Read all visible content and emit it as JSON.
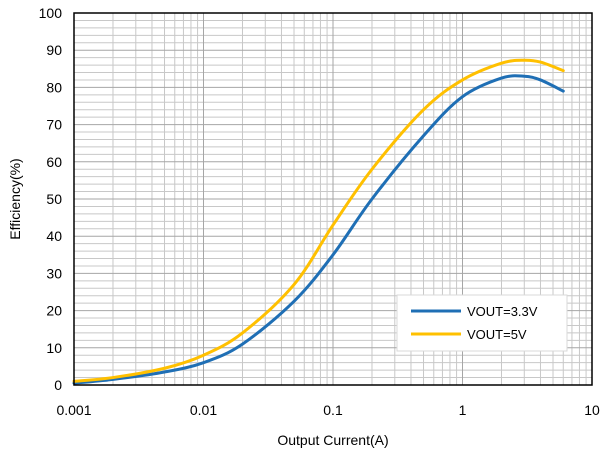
{
  "chart_data": {
    "type": "line",
    "title": "",
    "xlabel": "Output Current(A)",
    "ylabel": "Efficiency(%)",
    "xscale": "log",
    "xlim": [
      0.001,
      10
    ],
    "ylim": [
      0,
      100
    ],
    "x_ticks": [
      "0.001",
      "0.01",
      "0.1",
      "1",
      "10"
    ],
    "y_ticks": [
      "0",
      "10",
      "20",
      "30",
      "40",
      "50",
      "60",
      "70",
      "80",
      "90",
      "100"
    ],
    "grid": true,
    "legend_position": "bottom-right",
    "series": [
      {
        "name": "VOUT=3.3V",
        "color": "#1f6fb5",
        "points": [
          [
            0.001,
            0.5
          ],
          [
            0.002,
            1.5
          ],
          [
            0.005,
            3.5
          ],
          [
            0.01,
            6
          ],
          [
            0.02,
            11
          ],
          [
            0.05,
            22.5
          ],
          [
            0.1,
            35
          ],
          [
            0.2,
            50
          ],
          [
            0.5,
            67
          ],
          [
            1,
            77.5
          ],
          [
            2,
            82.5
          ],
          [
            3,
            83
          ],
          [
            4,
            82
          ],
          [
            6,
            79
          ]
        ]
      },
      {
        "name": "VOUT=5V",
        "color": "#ffc000",
        "points": [
          [
            0.001,
            1
          ],
          [
            0.002,
            2
          ],
          [
            0.005,
            4.5
          ],
          [
            0.01,
            8
          ],
          [
            0.02,
            14
          ],
          [
            0.05,
            27
          ],
          [
            0.1,
            43
          ],
          [
            0.2,
            58
          ],
          [
            0.5,
            74
          ],
          [
            1,
            82
          ],
          [
            2,
            86.5
          ],
          [
            3,
            87.3
          ],
          [
            4,
            86.8
          ],
          [
            6,
            84.5
          ]
        ]
      }
    ]
  }
}
